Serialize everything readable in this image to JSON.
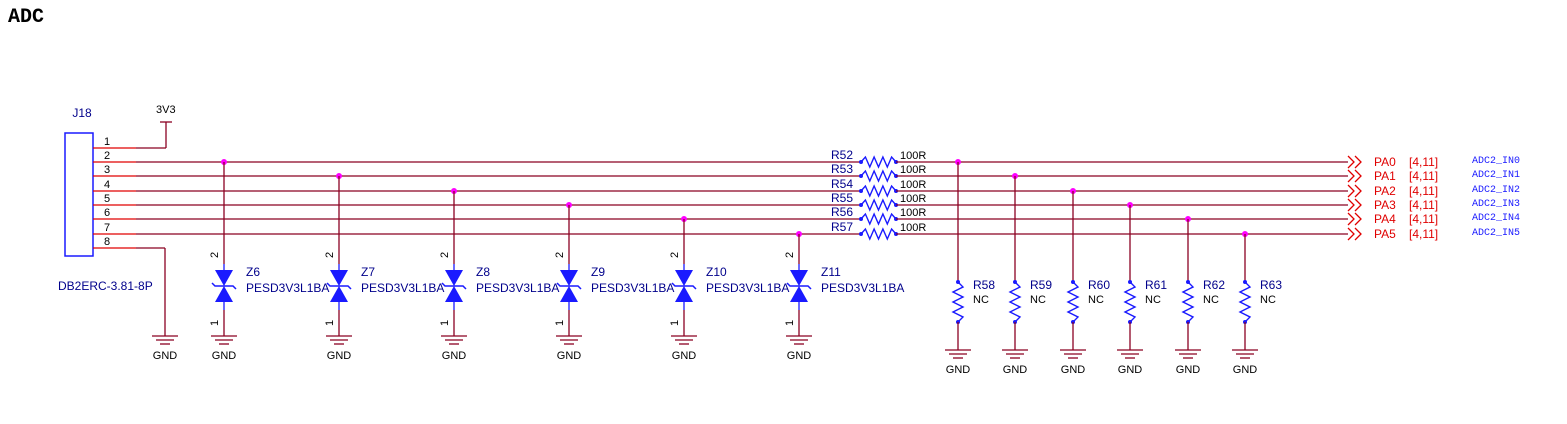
{
  "title": "ADC",
  "connector": {
    "ref": "J18",
    "part": "DB2ERC-3.81-8P",
    "pins": [
      "1",
      "2",
      "3",
      "4",
      "5",
      "6",
      "7",
      "8"
    ]
  },
  "power": {
    "label": "3V3"
  },
  "gnd_label": "GND",
  "tvs": [
    {
      "ref": "Z6",
      "part": "PESD3V3L1BA",
      "pin_top": "2",
      "pin_bottom": "1"
    },
    {
      "ref": "Z7",
      "part": "PESD3V3L1BA",
      "pin_top": "2",
      "pin_bottom": "1"
    },
    {
      "ref": "Z8",
      "part": "PESD3V3L1BA",
      "pin_top": "2",
      "pin_bottom": "1"
    },
    {
      "ref": "Z9",
      "part": "PESD3V3L1BA",
      "pin_top": "2",
      "pin_bottom": "1"
    },
    {
      "ref": "Z10",
      "part": "PESD3V3L1BA",
      "pin_top": "2",
      "pin_bottom": "1"
    },
    {
      "ref": "Z11",
      "part": "PESD3V3L1BA",
      "pin_top": "2",
      "pin_bottom": "1"
    }
  ],
  "series_resistors": [
    {
      "ref": "R52",
      "value": "100R"
    },
    {
      "ref": "R53",
      "value": "100R"
    },
    {
      "ref": "R54",
      "value": "100R"
    },
    {
      "ref": "R55",
      "value": "100R"
    },
    {
      "ref": "R56",
      "value": "100R"
    },
    {
      "ref": "R57",
      "value": "100R"
    }
  ],
  "pull_resistors": [
    {
      "ref": "R58",
      "value": "NC"
    },
    {
      "ref": "R59",
      "value": "NC"
    },
    {
      "ref": "R60",
      "value": "NC"
    },
    {
      "ref": "R61",
      "value": "NC"
    },
    {
      "ref": "R62",
      "value": "NC"
    },
    {
      "ref": "R63",
      "value": "NC"
    }
  ],
  "ports": [
    {
      "name": "PA0",
      "ref": "[4,11]",
      "net": "ADC2_IN0"
    },
    {
      "name": "PA1",
      "ref": "[4,11]",
      "net": "ADC2_IN1"
    },
    {
      "name": "PA2",
      "ref": "[4,11]",
      "net": "ADC2_IN2"
    },
    {
      "name": "PA3",
      "ref": "[4,11]",
      "net": "ADC2_IN3"
    },
    {
      "name": "PA4",
      "ref": "[4,11]",
      "net": "ADC2_IN4"
    },
    {
      "name": "PA5",
      "ref": "[4,11]",
      "net": "ADC2_IN5"
    }
  ],
  "colors": {
    "wire": "#8b0022",
    "symbol": "#1a1aff",
    "junction": "#ff00ff",
    "port": "#e00000",
    "label": "#00008b"
  }
}
